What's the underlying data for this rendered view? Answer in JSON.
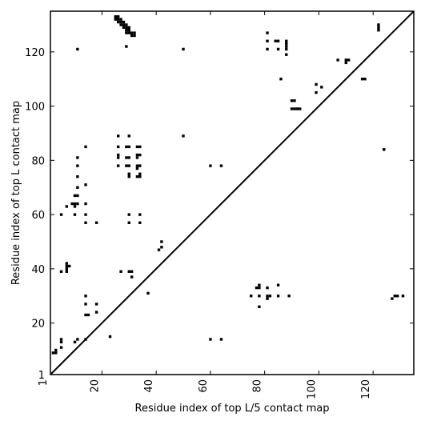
{
  "chart_data": {
    "type": "scatter",
    "marker": "square",
    "grid": false,
    "legend": "none",
    "xlabel": "Residue index of top L/5 contact map",
    "ylabel": "Residue index of top L contact map",
    "xlim": [
      1,
      135
    ],
    "ylim": [
      1,
      135
    ],
    "xticks": [
      1,
      20,
      40,
      60,
      80,
      100,
      120
    ],
    "yticks": [
      1,
      20,
      40,
      60,
      80,
      100,
      120
    ],
    "xtick_rotation": -90,
    "diagonal": true,
    "colors": {
      "marker": "#000000",
      "axis": "#000000",
      "background": "#ffffff"
    },
    "upper_points": [
      [
        25,
        133
      ],
      [
        26,
        133
      ],
      [
        25,
        132
      ],
      [
        26,
        132
      ],
      [
        27,
        132
      ],
      [
        26,
        131
      ],
      [
        27,
        131
      ],
      [
        28,
        131
      ],
      [
        27,
        130
      ],
      [
        28,
        130
      ],
      [
        29,
        130
      ],
      [
        28,
        129
      ],
      [
        29,
        129
      ],
      [
        30,
        129
      ],
      [
        29,
        128
      ],
      [
        30,
        128
      ],
      [
        29,
        127
      ],
      [
        30,
        127
      ],
      [
        31,
        127
      ],
      [
        32,
        127
      ],
      [
        31,
        126
      ],
      [
        32,
        126
      ],
      [
        11,
        121
      ],
      [
        29,
        122
      ],
      [
        50,
        121
      ],
      [
        81,
        127
      ],
      [
        81,
        124
      ],
      [
        84,
        124
      ],
      [
        85,
        124
      ],
      [
        88,
        124
      ],
      [
        88,
        123
      ],
      [
        88,
        122
      ],
      [
        81,
        121
      ],
      [
        85,
        121
      ],
      [
        88,
        121
      ],
      [
        88,
        119
      ],
      [
        86,
        110
      ],
      [
        90,
        102
      ],
      [
        91,
        102
      ],
      [
        90,
        99
      ],
      [
        91,
        99
      ],
      [
        92,
        99
      ],
      [
        93,
        99
      ],
      [
        99,
        108
      ],
      [
        101,
        107
      ],
      [
        99,
        105
      ],
      [
        107,
        117
      ],
      [
        110,
        117
      ],
      [
        111,
        117
      ],
      [
        110,
        116
      ],
      [
        116,
        110
      ],
      [
        117,
        110
      ],
      [
        122,
        130
      ],
      [
        122,
        129
      ],
      [
        122,
        128
      ],
      [
        124,
        84
      ],
      [
        26,
        89
      ],
      [
        30,
        89
      ],
      [
        50,
        89
      ],
      [
        14,
        85
      ],
      [
        26,
        85
      ],
      [
        29,
        85
      ],
      [
        30,
        85
      ],
      [
        33,
        85
      ],
      [
        34,
        85
      ],
      [
        26,
        82
      ],
      [
        26,
        81
      ],
      [
        29,
        81
      ],
      [
        30,
        81
      ],
      [
        33,
        82
      ],
      [
        34,
        82
      ],
      [
        33,
        81
      ],
      [
        26,
        78
      ],
      [
        29,
        78
      ],
      [
        30,
        78
      ],
      [
        33,
        78
      ],
      [
        34,
        78
      ],
      [
        33,
        77
      ],
      [
        30,
        75
      ],
      [
        30,
        74
      ],
      [
        33,
        74
      ],
      [
        34,
        74
      ],
      [
        34,
        75
      ],
      [
        11,
        81
      ],
      [
        11,
        78
      ],
      [
        11,
        74
      ],
      [
        60,
        78
      ],
      [
        64,
        78
      ],
      [
        14,
        71
      ],
      [
        11,
        70
      ],
      [
        10,
        67
      ],
      [
        11,
        67
      ],
      [
        9,
        64
      ],
      [
        10,
        64
      ],
      [
        11,
        64
      ],
      [
        14,
        64
      ],
      [
        7,
        63
      ],
      [
        10,
        63
      ],
      [
        5,
        60
      ],
      [
        10,
        60
      ],
      [
        14,
        60
      ],
      [
        30,
        60
      ],
      [
        34,
        60
      ],
      [
        14,
        57
      ],
      [
        18,
        57
      ],
      [
        30,
        57
      ],
      [
        34,
        57
      ],
      [
        42,
        50
      ],
      [
        42,
        48
      ],
      [
        41,
        47
      ],
      [
        7,
        42
      ],
      [
        7,
        41
      ],
      [
        8,
        41
      ],
      [
        7,
        40
      ],
      [
        7,
        39
      ],
      [
        5,
        39
      ],
      [
        27,
        39
      ],
      [
        30,
        39
      ],
      [
        31,
        39
      ],
      [
        31,
        37
      ],
      [
        37,
        31
      ],
      [
        14,
        30
      ],
      [
        14,
        27
      ],
      [
        18,
        27
      ],
      [
        14,
        23
      ],
      [
        15,
        23
      ],
      [
        18,
        24
      ],
      [
        23,
        15
      ],
      [
        60,
        14
      ],
      [
        64,
        14
      ],
      [
        5,
        14
      ],
      [
        5,
        13
      ],
      [
        5,
        11
      ],
      [
        3,
        10
      ],
      [
        2,
        9
      ],
      [
        3,
        9
      ],
      [
        11,
        14
      ],
      [
        10,
        13
      ],
      [
        14,
        14
      ]
    ],
    "lower_points": [
      [
        78,
        34
      ],
      [
        77,
        33
      ],
      [
        78,
        33
      ],
      [
        81,
        33
      ],
      [
        85,
        34
      ],
      [
        75,
        30
      ],
      [
        78,
        30
      ],
      [
        81,
        30
      ],
      [
        82,
        30
      ],
      [
        85,
        30
      ],
      [
        89,
        30
      ],
      [
        81,
        29
      ],
      [
        78,
        26
      ],
      [
        128,
        30
      ],
      [
        129,
        30
      ],
      [
        131,
        30
      ],
      [
        127,
        29
      ]
    ]
  }
}
